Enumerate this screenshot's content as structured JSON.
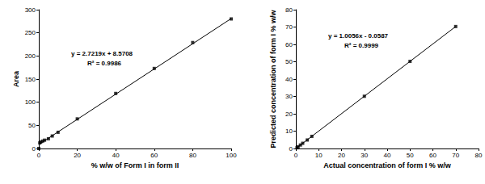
{
  "chart_data": [
    {
      "type": "scatter",
      "x_label": "% w/w of Form I in form II",
      "y_label": "Area",
      "annotations": [
        "y = 2.7219x + 8.5708",
        "R² = 0.9986"
      ],
      "xlim": [
        0,
        100
      ],
      "xticks": [
        0,
        20,
        40,
        60,
        80,
        100
      ],
      "ylim": [
        0,
        300
      ],
      "yticks": [
        0,
        50,
        100,
        150,
        200,
        250,
        300
      ],
      "grid": false,
      "series": [
        {
          "type": "scatter",
          "marker": "square",
          "color": "#000000",
          "x": [
            0,
            0.5,
            1,
            2,
            3,
            5,
            7,
            10,
            20,
            40,
            60,
            80,
            100
          ],
          "values": [
            0,
            12,
            14,
            16,
            18,
            21,
            27,
            35,
            64,
            119,
            173,
            229,
            280
          ]
        },
        {
          "type": "line",
          "line_style": "solid",
          "color": "#000000",
          "x": [
            0,
            100
          ],
          "values": [
            8.6,
            280.8
          ]
        }
      ]
    },
    {
      "type": "scatter",
      "x_label": "Actual concentration of form I % w/w",
      "y_label": "Predicted concentration of form I % w/w",
      "annotations": [
        "y = 1.0056x - 0.0587",
        "R² = 0.9999"
      ],
      "xlim": [
        0,
        80
      ],
      "xticks": [
        0,
        10,
        20,
        30,
        40,
        50,
        60,
        70,
        80
      ],
      "ylim": [
        0,
        80
      ],
      "yticks": [
        0,
        10,
        20,
        30,
        40,
        50,
        60,
        70,
        80
      ],
      "grid": false,
      "series": [
        {
          "type": "scatter",
          "marker": "square",
          "color": "#000000",
          "x": [
            0.5,
            1,
            2,
            3,
            5,
            7,
            30,
            50,
            70
          ],
          "values": [
            0.4,
            1.0,
            2.0,
            3.0,
            4.9,
            7.0,
            30.1,
            50.2,
            70.3
          ]
        },
        {
          "type": "line",
          "line_style": "solid",
          "color": "#000000",
          "x": [
            0,
            70
          ],
          "values": [
            0,
            70.3
          ]
        }
      ]
    }
  ]
}
